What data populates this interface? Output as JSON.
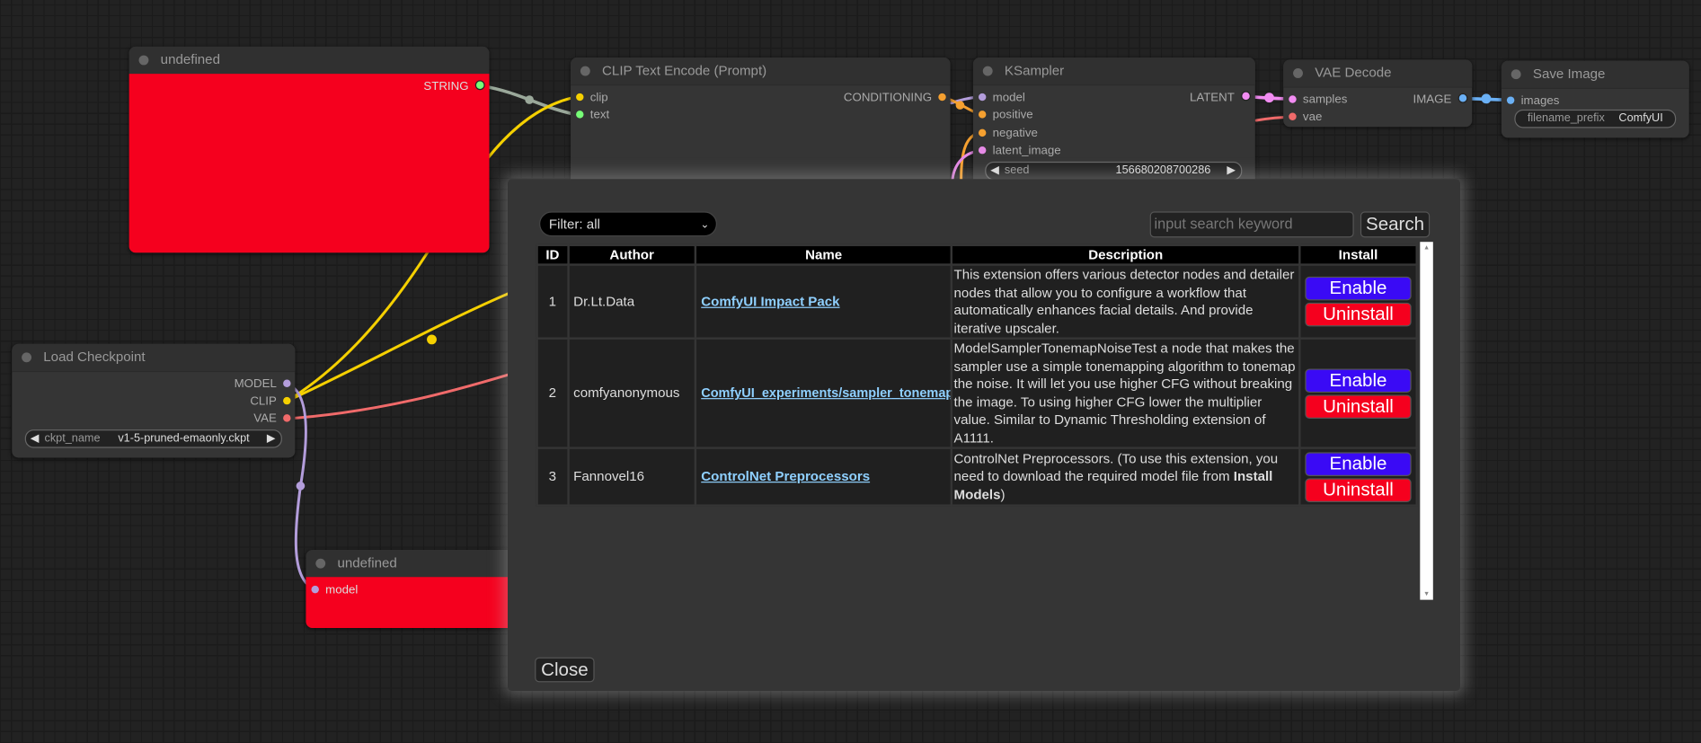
{
  "nodes": {
    "undefined_top": {
      "title": "undefined",
      "outputs": [
        "STRING"
      ]
    },
    "clip_text_encode": {
      "title": "CLIP Text Encode (Prompt)",
      "inputs": [
        "clip",
        "text"
      ],
      "outputs": [
        "CONDITIONING"
      ]
    },
    "ksampler": {
      "title": "KSampler",
      "inputs": [
        "model",
        "positive",
        "negative",
        "latent_image"
      ],
      "outputs": [
        "LATENT"
      ],
      "seed_label": "seed",
      "seed_value": "156680208700286"
    },
    "vae_decode": {
      "title": "VAE Decode",
      "inputs": [
        "samples",
        "vae"
      ],
      "outputs": [
        "IMAGE"
      ]
    },
    "save_image": {
      "title": "Save Image",
      "inputs": [
        "images"
      ],
      "filename_prefix_label": "filename_prefix",
      "filename_prefix_value": "ComfyUI"
    },
    "load_checkpoint": {
      "title": "Load Checkpoint",
      "outputs": [
        "MODEL",
        "CLIP",
        "VAE"
      ],
      "ckpt_label": "ckpt_name",
      "ckpt_value": "v1-5-pruned-emaonly.ckpt"
    },
    "undefined_bottom": {
      "title": "undefined",
      "inputs": [
        "model"
      ]
    }
  },
  "colors": {
    "error_node": "#f5001e",
    "enable": "#3a0af5",
    "uninstall": "#f5001e",
    "link": "#8fd0ff"
  },
  "dialog": {
    "filter": "Filter: all",
    "search_placeholder": "input search keyword",
    "search_label": "Search",
    "close_label": "Close",
    "columns": [
      "ID",
      "Author",
      "Name",
      "Description",
      "Install"
    ],
    "rows": [
      {
        "id": "1",
        "author": "Dr.Lt.Data",
        "name": "ComfyUI Impact Pack",
        "description": "This extension offers various detector nodes and detailer nodes that allow you to configure a workflow that automatically enhances facial details. And provide iterative upscaler.",
        "enable": "Enable",
        "uninstall": "Uninstall"
      },
      {
        "id": "2",
        "author": "comfyanonymous",
        "name": "ComfyUI_experiments/sampler_tonemap",
        "description": "ModelSamplerTonemapNoiseTest a node that makes the sampler use a simple tonemapping algorithm to tonemap the noise. It will let you use higher CFG without breaking the image. To using higher CFG lower the multiplier value. Similar to Dynamic Thresholding extension of A1111.",
        "enable": "Enable",
        "uninstall": "Uninstall"
      },
      {
        "id": "3",
        "author": "Fannovel16",
        "name": "ControlNet Preprocessors",
        "description": "ControlNet Preprocessors. (To use this extension, you need to download the required model file from ",
        "description_bold": "Install Models",
        "description_end": ")",
        "enable": "Enable",
        "uninstall": "Uninstall"
      }
    ]
  }
}
